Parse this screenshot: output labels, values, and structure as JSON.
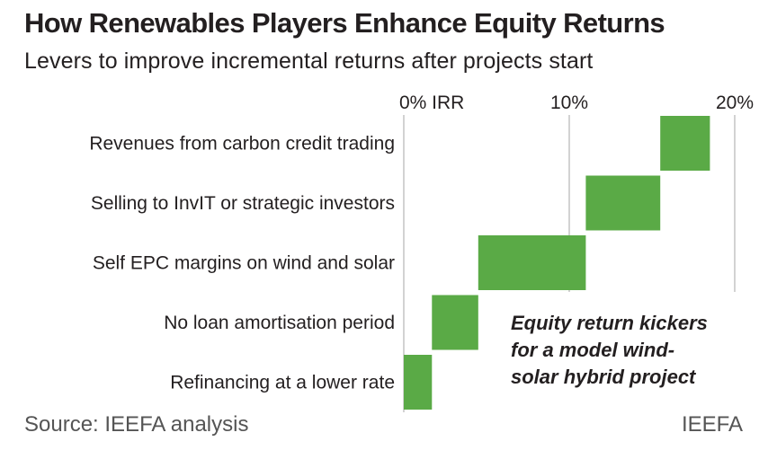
{
  "header": {
    "title": "How Renewables Players Enhance Equity Returns",
    "subtitle": "Levers to improve incremental returns after projects start"
  },
  "footer": {
    "source": "Source: IEEFA analysis",
    "brand": "IEEFA"
  },
  "colors": {
    "bar": "#5aaa46",
    "axis_line": "#bbbbbb",
    "text": "#231f20"
  },
  "chart_data": {
    "type": "bar",
    "orientation": "horizontal",
    "style": "waterfall",
    "title": "How Renewables Players Enhance Equity Returns",
    "subtitle": "Levers to improve incremental returns after projects start",
    "xlim": [
      0,
      21
    ],
    "xticks": [
      {
        "value": 0,
        "label": "0% IRR"
      },
      {
        "value": 10,
        "label": "10%"
      },
      {
        "value": 20,
        "label": "20%"
      }
    ],
    "grid": true,
    "categories": [
      "Revenues from carbon credit trading",
      "Selling to InvIT or strategic investors",
      "Self EPC margins on wind and solar",
      "No loan amortisation period",
      "Refinancing at a lower rate"
    ],
    "series": [
      {
        "start": [
          15.5,
          11.0,
          4.5,
          1.7,
          0.0
        ],
        "end": [
          18.5,
          15.5,
          11.0,
          4.5,
          1.7
        ],
        "values": [
          3.0,
          4.5,
          6.5,
          2.8,
          1.7
        ]
      }
    ],
    "annotation": [
      "Equity return kickers",
      "for a model wind-",
      "solar hybrid project"
    ]
  }
}
